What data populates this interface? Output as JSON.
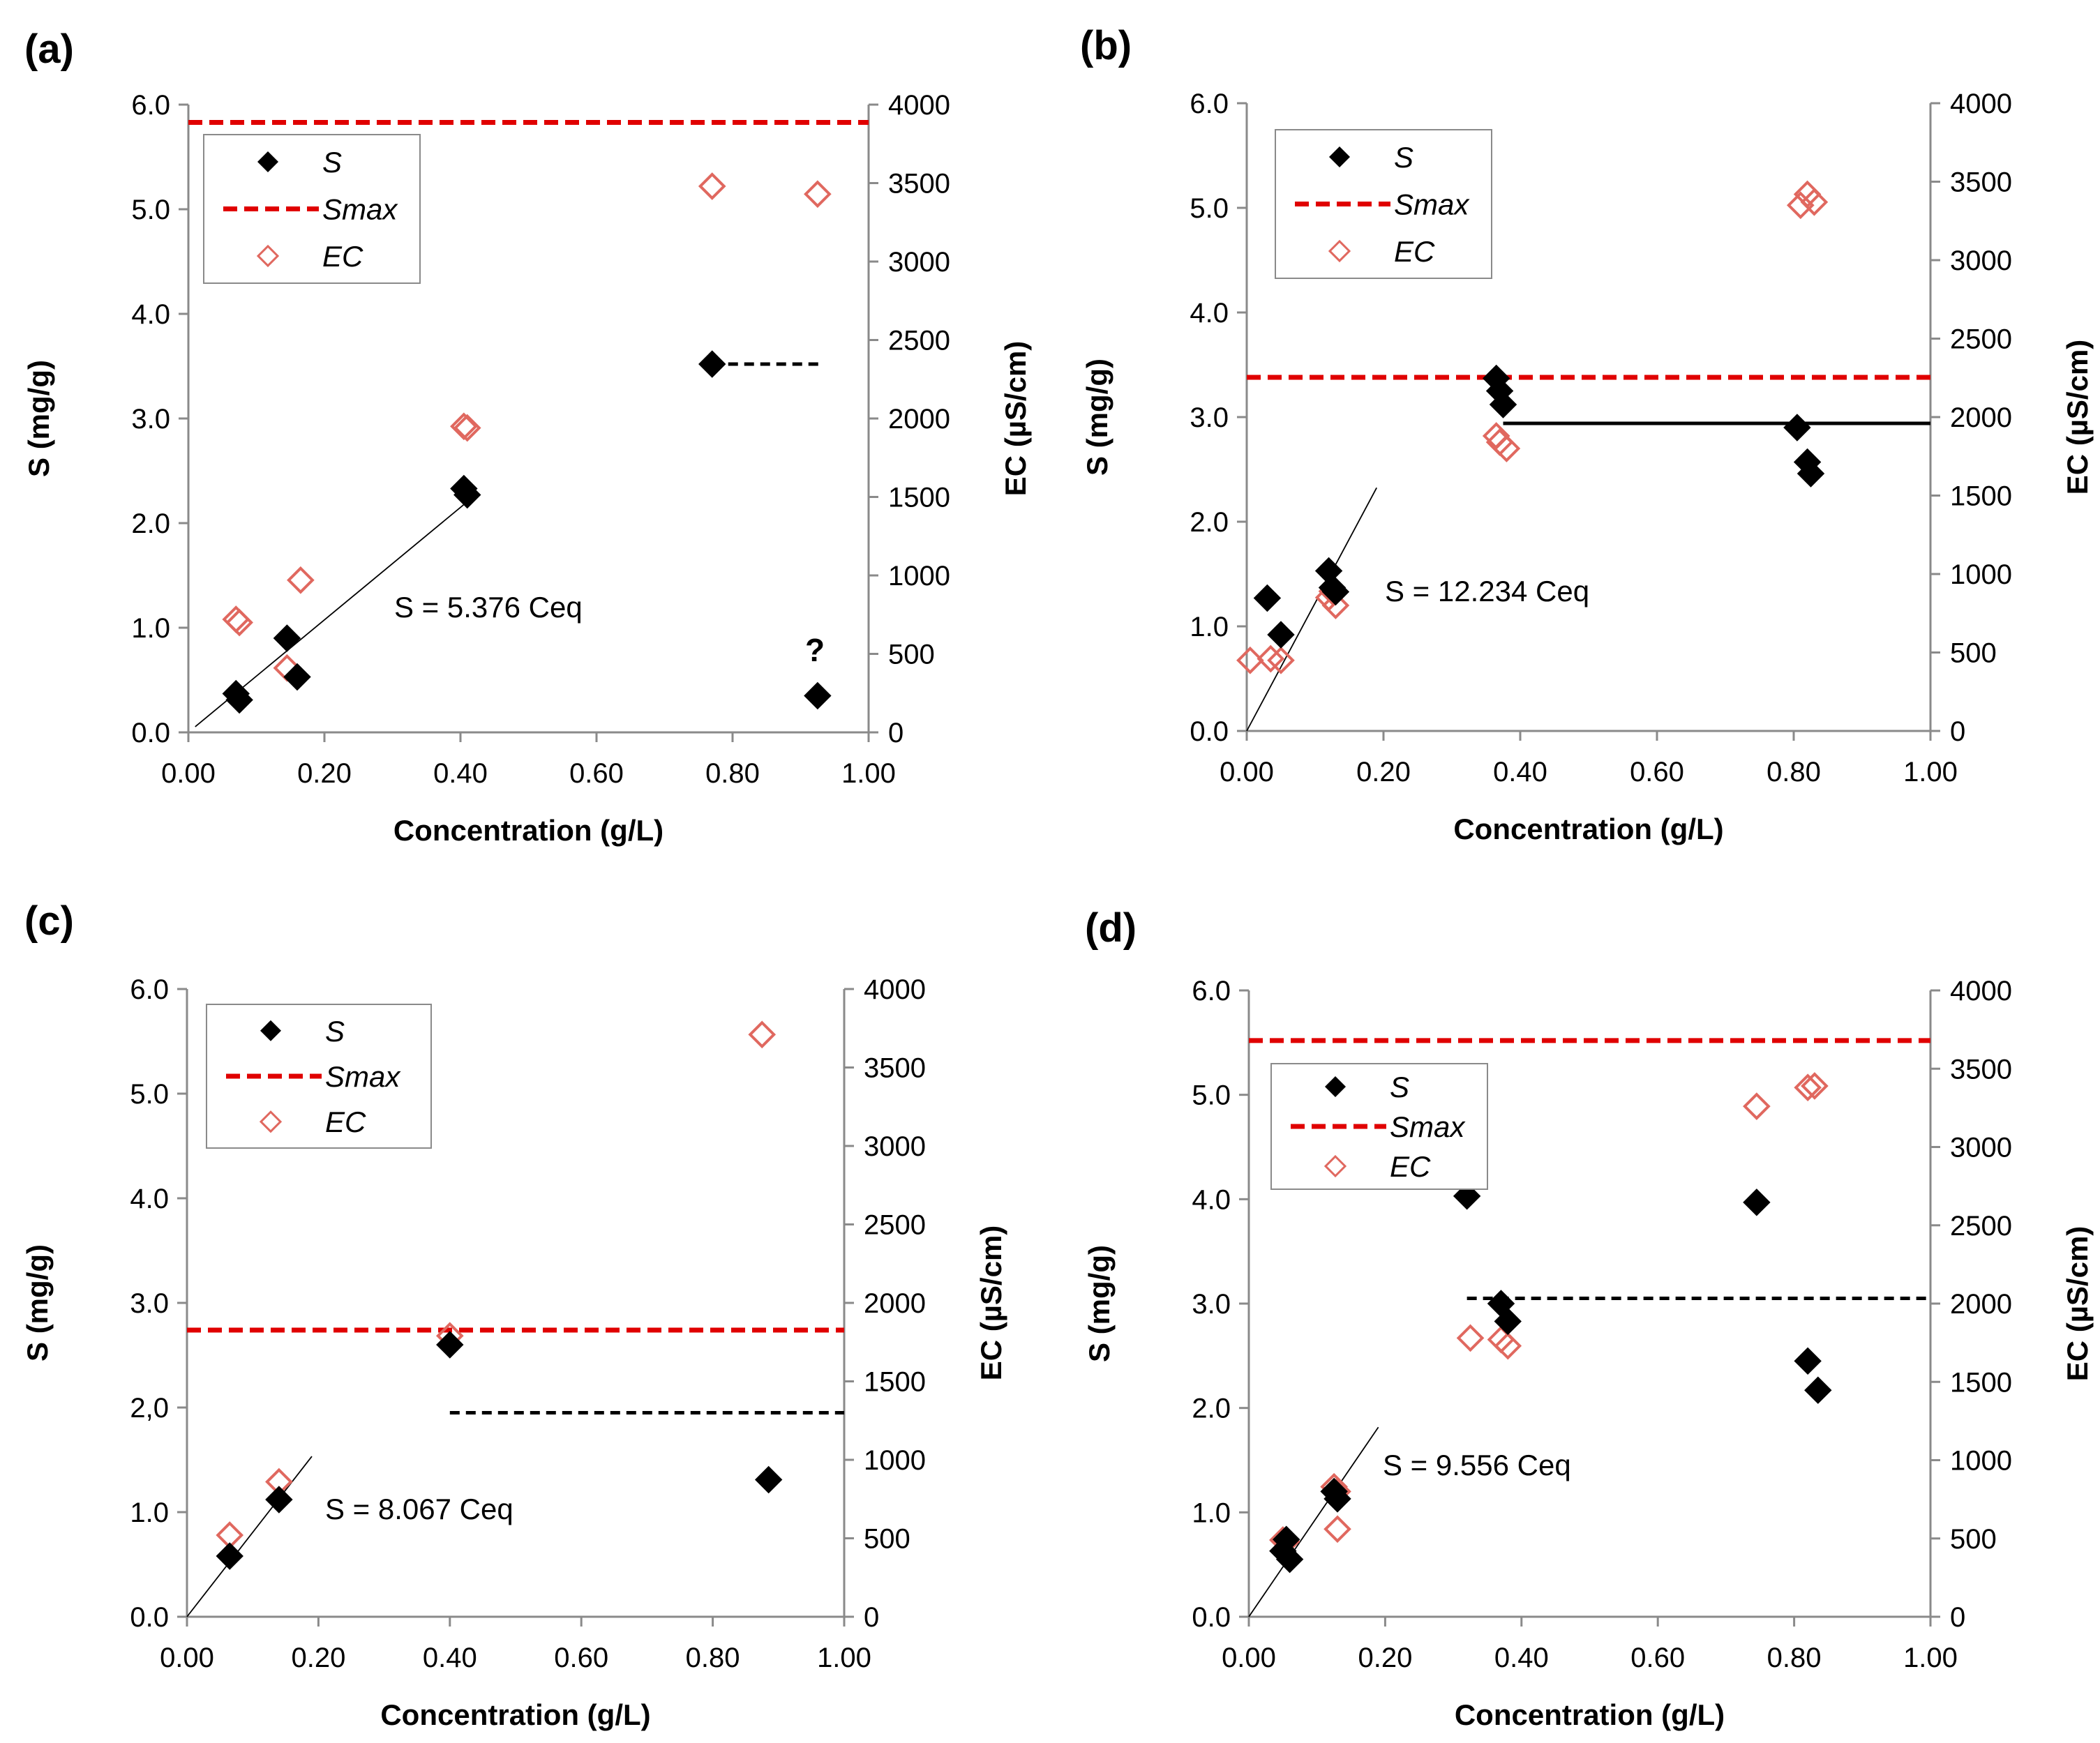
{
  "chart_data": [
    {
      "id": "a",
      "type": "scatter",
      "panel_label": "(a)",
      "xlabel": "Concentration (g/L)",
      "ylabel": "S (mg/g)",
      "y2label": "EC (µS/cm)",
      "xlim": [
        0,
        1
      ],
      "ylim": [
        0,
        6
      ],
      "y2lim": [
        0,
        4000
      ],
      "x_ticks": [
        "0.00",
        "0.20",
        "0.40",
        "0.60",
        "0.80",
        "1.00"
      ],
      "y_ticks": [
        "0.0",
        "1.0",
        "2.0",
        "3.0",
        "4.0",
        "5.0",
        "6.0"
      ],
      "y2_ticks": [
        "0",
        "500",
        "1000",
        "1500",
        "2000",
        "2500",
        "3000",
        "3500",
        "4000"
      ],
      "legend": [
        "S",
        "Smax",
        "EC"
      ],
      "S": [
        [
          0.07,
          0.37
        ],
        [
          0.075,
          0.31
        ],
        [
          0.145,
          0.9
        ],
        [
          0.16,
          0.53
        ],
        [
          0.405,
          2.33
        ],
        [
          0.41,
          2.27
        ],
        [
          0.77,
          3.52
        ],
        [
          0.925,
          0.35
        ]
      ],
      "EC": [
        [
          0.07,
          720
        ],
        [
          0.075,
          700
        ],
        [
          0.145,
          410
        ],
        [
          0.165,
          970
        ],
        [
          0.405,
          1950
        ],
        [
          0.41,
          1940
        ],
        [
          0.77,
          3480
        ],
        [
          0.925,
          3430
        ]
      ],
      "smax": 5.83,
      "plateau": {
        "x0": 0.77,
        "x1": 0.93,
        "y": 3.52,
        "style": "dashed"
      },
      "fit": {
        "x0": 0.01,
        "x1": 0.42,
        "slope": 5.376
      },
      "fit_label": "S = 5.376 Ceq",
      "annotation": "?"
    },
    {
      "id": "b",
      "type": "scatter",
      "panel_label": "(b)",
      "xlabel": "Concentration (g/L)",
      "ylabel": "S (mg/g)",
      "y2label": "EC (µS/cm)",
      "xlim": [
        0,
        1
      ],
      "ylim": [
        0,
        6
      ],
      "y2lim": [
        0,
        4000
      ],
      "x_ticks": [
        "0.00",
        "0.20",
        "0.40",
        "0.60",
        "0.80",
        "1.00"
      ],
      "y_ticks": [
        "0.0",
        "1.0",
        "2.0",
        "3.0",
        "4.0",
        "5.0",
        "6.0"
      ],
      "y2_ticks": [
        "0",
        "500",
        "1000",
        "1500",
        "2000",
        "2500",
        "3000",
        "3500",
        "4000"
      ],
      "legend": [
        "S",
        "Smax",
        "EC"
      ],
      "S": [
        [
          0.03,
          1.27
        ],
        [
          0.05,
          0.92
        ],
        [
          0.12,
          1.53
        ],
        [
          0.125,
          1.37
        ],
        [
          0.13,
          1.33
        ],
        [
          0.365,
          3.37
        ],
        [
          0.37,
          3.25
        ],
        [
          0.375,
          3.12
        ],
        [
          0.805,
          2.9
        ],
        [
          0.82,
          2.57
        ],
        [
          0.825,
          2.46
        ]
      ],
      "EC": [
        [
          0.005,
          450
        ],
        [
          0.035,
          460
        ],
        [
          0.05,
          450
        ],
        [
          0.12,
          850
        ],
        [
          0.125,
          890
        ],
        [
          0.13,
          800
        ],
        [
          0.365,
          1880
        ],
        [
          0.37,
          1840
        ],
        [
          0.38,
          1800
        ],
        [
          0.81,
          3350
        ],
        [
          0.82,
          3420
        ],
        [
          0.83,
          3370
        ]
      ],
      "smax": 3.38,
      "plateau": {
        "x0": 0.375,
        "x1": 1.0,
        "y": 2.94,
        "style": "solid"
      },
      "fit": {
        "x0": 0.0,
        "x1": 0.19,
        "slope": 12.234
      },
      "fit_label": "S = 12.234 Ceq"
    },
    {
      "id": "c",
      "type": "scatter",
      "panel_label": "(c)",
      "xlabel": "Concentration (g/L)",
      "ylabel": "S (mg/g)",
      "y2label": "EC (µS/cm)",
      "xlim": [
        0,
        1
      ],
      "ylim": [
        0,
        6
      ],
      "y2lim": [
        0,
        4000
      ],
      "x_ticks": [
        "0.00",
        "0.20",
        "0.40",
        "0.60",
        "0.80",
        "1.00"
      ],
      "y_ticks": [
        "0.0",
        "1.0",
        "2,0",
        "3.0",
        "4.0",
        "5.0",
        "6.0"
      ],
      "y2_ticks": [
        "0",
        "500",
        "1000",
        "1500",
        "2000",
        "2500",
        "3000",
        "3500",
        "4000"
      ],
      "legend": [
        "S",
        "Smax",
        "EC"
      ],
      "S": [
        [
          0.065,
          0.58
        ],
        [
          0.14,
          1.12
        ],
        [
          0.4,
          2.6
        ],
        [
          0.885,
          1.31
        ]
      ],
      "EC": [
        [
          0.065,
          520
        ],
        [
          0.14,
          860
        ],
        [
          0.4,
          1790
        ],
        [
          0.875,
          3710
        ]
      ],
      "smax": 2.74,
      "plateau": {
        "x0": 0.4,
        "x1": 1.0,
        "y": 1.95,
        "style": "dashed"
      },
      "fit": {
        "x0": 0.0,
        "x1": 0.19,
        "slope": 8.067
      },
      "fit_label": "S = 8.067 Ceq"
    },
    {
      "id": "d",
      "type": "scatter",
      "panel_label": "(d)",
      "xlabel": "Concentration (g/L)",
      "ylabel": "S (mg/g)",
      "y2label": "EC (µS/cm)",
      "xlim": [
        0,
        1
      ],
      "ylim": [
        0,
        6
      ],
      "y2lim": [
        0,
        4000
      ],
      "x_ticks": [
        "0.00",
        "0.20",
        "0.40",
        "0.60",
        "0.80",
        "1.00"
      ],
      "y_ticks": [
        "0.0",
        "1.0",
        "2.0",
        "3.0",
        "4.0",
        "5.0",
        "6.0"
      ],
      "y2_ticks": [
        "0",
        "500",
        "1000",
        "1500",
        "2000",
        "2500",
        "3000",
        "3500",
        "4000"
      ],
      "legend": [
        "S",
        "Smax",
        "EC"
      ],
      "S": [
        [
          0.05,
          0.63
        ],
        [
          0.055,
          0.74
        ],
        [
          0.06,
          0.55
        ],
        [
          0.125,
          1.2
        ],
        [
          0.13,
          1.13
        ],
        [
          0.32,
          4.03
        ],
        [
          0.37,
          3.0
        ],
        [
          0.38,
          2.83
        ],
        [
          0.745,
          3.97
        ],
        [
          0.82,
          2.45
        ],
        [
          0.835,
          2.17
        ]
      ],
      "EC": [
        [
          0.05,
          490
        ],
        [
          0.055,
          480
        ],
        [
          0.125,
          830
        ],
        [
          0.13,
          800
        ],
        [
          0.13,
          560
        ],
        [
          0.325,
          1780
        ],
        [
          0.37,
          1770
        ],
        [
          0.38,
          1730
        ],
        [
          0.745,
          3260
        ],
        [
          0.82,
          3380
        ],
        [
          0.83,
          3390
        ]
      ],
      "smax": 5.52,
      "plateau": {
        "x0": 0.32,
        "x1": 1.0,
        "y": 3.05,
        "style": "dashed"
      },
      "fit": {
        "x0": 0.0,
        "x1": 0.19,
        "slope": 9.556
      },
      "fit_label": "S = 9.556 Ceq"
    }
  ]
}
